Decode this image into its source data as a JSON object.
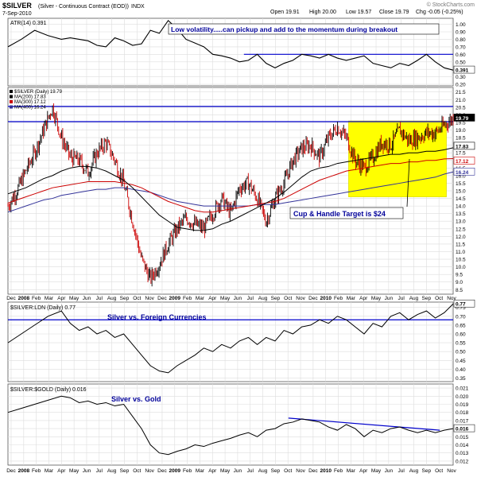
{
  "header": {
    "symbol": "$SILVER",
    "description": "(Silver - Continuous Contract (EOD))",
    "exchange": "INDX",
    "date": "7-Sep-2010",
    "open": "Open 19.91",
    "high": "High 20.00",
    "low": "Low 19.57",
    "close": "Close 19.79",
    "change": "Chg -0.05 (-0.25%)",
    "watermark": "© StockCharts.com"
  },
  "colors": {
    "price_up": "#000000",
    "price_down": "#cc0000",
    "ma200": "#000000",
    "ma300": "#cc0000",
    "ma400": "#333399",
    "highlight": "#ffff00",
    "annotation_text": "#000099",
    "hline": "#0000cc"
  },
  "chart_data": [
    {
      "type": "line",
      "panel": "atr",
      "legend": "ATR(14) 0.391",
      "annotation": "Low volatility.....can pickup and add to the momentum during breakout",
      "yticks": [
        "1.00",
        "0.90",
        "0.80",
        "0.70",
        "0.60",
        "0.50",
        "0.40",
        "0.30",
        "0.20"
      ],
      "ylim": [
        0.18,
        1.08
      ],
      "last_value_label": "0.391",
      "hline": 0.6,
      "x": [
        0,
        3,
        6,
        9,
        12,
        14,
        16,
        18,
        20,
        22,
        24,
        26,
        28,
        30,
        32,
        34,
        36,
        38,
        40,
        42,
        44,
        46,
        48,
        50,
        52,
        54,
        56,
        58,
        60,
        62,
        64,
        66,
        68,
        70,
        72,
        74,
        76,
        78,
        80,
        82,
        84,
        86,
        88,
        90,
        92,
        94,
        96,
        98,
        100
      ],
      "y": [
        0.7,
        0.8,
        0.92,
        0.85,
        0.8,
        0.82,
        0.8,
        0.78,
        0.72,
        0.7,
        0.82,
        0.78,
        0.72,
        0.74,
        0.92,
        0.88,
        1.05,
        0.94,
        0.8,
        0.75,
        0.7,
        0.6,
        0.58,
        0.55,
        0.5,
        0.52,
        0.6,
        0.48,
        0.42,
        0.48,
        0.52,
        0.6,
        0.58,
        0.55,
        0.6,
        0.55,
        0.52,
        0.55,
        0.58,
        0.48,
        0.45,
        0.42,
        0.48,
        0.45,
        0.52,
        0.6,
        0.5,
        0.42,
        0.39
      ]
    },
    {
      "type": "candlestick",
      "panel": "price",
      "legend": [
        "$SILVER (Daily) 19.79",
        "MA(200) 17.83",
        "MA(300) 17.12",
        "MA(400) 16.24"
      ],
      "yticks": [
        "21.5",
        "21.0",
        "20.5",
        "20.0",
        "19.5",
        "19.0",
        "18.5",
        "18.0",
        "17.5",
        "17.0",
        "16.5",
        "16.0",
        "15.5",
        "15.0",
        "14.5",
        "14.0",
        "13.5",
        "13.0",
        "12.5",
        "12.0",
        "11.5",
        "11.0",
        "10.5",
        "10.0",
        "9.5",
        "9.0",
        "8.5"
      ],
      "ylim": [
        8.2,
        21.8
      ],
      "last_value_labels": [
        "19.79",
        "17.83",
        "17.12",
        "16.24"
      ],
      "hlines": [
        20.55,
        19.55
      ],
      "annotation": "Cup & Handle Target is $24",
      "highlight_box": {
        "x": [
          76.5,
          98.5
        ],
        "y": [
          14.6,
          19.6
        ]
      },
      "x": [
        0,
        2,
        4,
        6,
        8,
        10,
        12,
        14,
        16,
        18,
        20,
        22,
        24,
        26,
        28,
        30,
        32,
        34,
        36,
        38,
        40,
        42,
        44,
        46,
        48,
        50,
        52,
        54,
        56,
        58,
        60,
        62,
        64,
        66,
        68,
        70,
        72,
        74,
        76,
        78,
        80,
        82,
        84,
        86,
        88,
        90,
        92,
        94,
        96,
        98,
        100
      ],
      "close": [
        14.0,
        15.0,
        16.3,
        17.5,
        19.0,
        20.5,
        18.5,
        17.2,
        17.0,
        16.2,
        17.5,
        18.2,
        17.0,
        15.5,
        13.0,
        10.5,
        9.2,
        10.2,
        11.5,
        12.5,
        13.2,
        12.8,
        12.5,
        13.5,
        14.5,
        13.5,
        15.2,
        15.5,
        14.5,
        13.0,
        14.5,
        15.5,
        17.0,
        17.8,
        18.0,
        17.2,
        18.5,
        19.2,
        18.5,
        17.0,
        16.5,
        17.2,
        18.2,
        18.0,
        19.0,
        18.3,
        18.5,
        18.8,
        18.8,
        19.3,
        19.79
      ],
      "ma200": [
        14.8,
        15.0,
        15.2,
        15.5,
        15.8,
        16.0,
        16.3,
        16.5,
        16.6,
        16.6,
        16.5,
        16.3,
        16.0,
        15.7,
        15.2,
        14.6,
        14.0,
        13.4,
        13.0,
        12.6,
        12.5,
        12.4,
        12.4,
        12.5,
        12.8,
        13.0,
        13.3,
        13.6,
        13.9,
        14.2,
        14.5,
        14.9,
        15.4,
        15.9,
        16.3,
        16.5,
        16.6,
        16.8,
        16.9,
        17.0,
        17.1,
        17.2,
        17.3,
        17.4,
        17.4,
        17.5,
        17.5,
        17.6,
        17.6,
        17.7,
        17.83
      ],
      "ma300": [
        14.2,
        14.4,
        14.6,
        14.8,
        15.0,
        15.2,
        15.3,
        15.4,
        15.5,
        15.6,
        15.6,
        15.6,
        15.6,
        15.5,
        15.4,
        15.2,
        14.9,
        14.6,
        14.3,
        14.1,
        13.9,
        13.7,
        13.6,
        13.6,
        13.7,
        13.8,
        13.9,
        14.0,
        14.1,
        14.2,
        14.3,
        14.5,
        14.8,
        15.1,
        15.4,
        15.7,
        15.9,
        16.1,
        16.3,
        16.4,
        16.5,
        16.6,
        16.7,
        16.8,
        16.8,
        16.9,
        16.9,
        17.0,
        17.0,
        17.1,
        17.12
      ],
      "ma400": [
        13.6,
        13.8,
        14.0,
        14.2,
        14.4,
        14.5,
        14.7,
        14.8,
        14.9,
        15.0,
        15.1,
        15.1,
        15.2,
        15.2,
        15.1,
        15.0,
        14.9,
        14.7,
        14.5,
        14.3,
        14.2,
        14.1,
        14.0,
        14.0,
        14.0,
        14.0,
        14.0,
        14.0,
        14.1,
        14.1,
        14.1,
        14.2,
        14.3,
        14.4,
        14.5,
        14.6,
        14.7,
        14.8,
        14.9,
        15.0,
        15.1,
        15.2,
        15.3,
        15.4,
        15.5,
        15.6,
        15.7,
        15.8,
        15.9,
        16.1,
        16.24
      ]
    },
    {
      "type": "line",
      "panel": "silver_ldn",
      "legend": "$SILVER:LDN (Daily) 0.77",
      "annotation": "Silver vs. Foreign Currencies",
      "yticks": [
        "0.75",
        "0.70",
        "0.65",
        "0.60",
        "0.55",
        "0.50",
        "0.45",
        "0.40",
        "0.35"
      ],
      "ylim": [
        0.33,
        0.78
      ],
      "last_value_label": "0.77",
      "hline": 0.68,
      "x": [
        0,
        3,
        6,
        9,
        12,
        14,
        16,
        18,
        20,
        22,
        24,
        26,
        28,
        30,
        32,
        34,
        36,
        38,
        40,
        42,
        44,
        46,
        48,
        50,
        52,
        54,
        56,
        58,
        60,
        62,
        64,
        66,
        68,
        70,
        72,
        74,
        76,
        78,
        80,
        82,
        84,
        86,
        88,
        90,
        92,
        94,
        96,
        98,
        100
      ],
      "y": [
        0.55,
        0.6,
        0.65,
        0.7,
        0.73,
        0.66,
        0.62,
        0.64,
        0.6,
        0.62,
        0.58,
        0.6,
        0.54,
        0.48,
        0.42,
        0.39,
        0.38,
        0.42,
        0.45,
        0.48,
        0.52,
        0.5,
        0.54,
        0.52,
        0.56,
        0.58,
        0.54,
        0.58,
        0.56,
        0.62,
        0.6,
        0.64,
        0.65,
        0.68,
        0.66,
        0.7,
        0.68,
        0.64,
        0.6,
        0.66,
        0.64,
        0.7,
        0.72,
        0.68,
        0.71,
        0.73,
        0.69,
        0.72,
        0.77
      ]
    },
    {
      "type": "line",
      "panel": "silver_gold",
      "legend": "$SILVER:$GOLD (Daily) 0.016",
      "annotation": "Silver vs. Gold",
      "yticks": [
        "0.021",
        "0.020",
        "0.019",
        "0.018",
        "0.017",
        "0.016",
        "0.015",
        "0.014",
        "0.013",
        "0.012"
      ],
      "ylim": [
        0.0115,
        0.0215
      ],
      "last_value_label": "0.016",
      "trendline": {
        "x": [
          63,
          97
        ],
        "y": [
          0.0173,
          0.0158
        ]
      },
      "x": [
        0,
        3,
        6,
        9,
        12,
        14,
        16,
        18,
        20,
        22,
        24,
        26,
        28,
        30,
        32,
        34,
        36,
        38,
        40,
        42,
        44,
        46,
        48,
        50,
        52,
        54,
        56,
        58,
        60,
        62,
        64,
        66,
        68,
        70,
        72,
        74,
        76,
        78,
        80,
        82,
        84,
        86,
        88,
        90,
        92,
        94,
        96,
        98,
        100
      ],
      "y": [
        0.018,
        0.0185,
        0.019,
        0.0195,
        0.02,
        0.0198,
        0.0192,
        0.0194,
        0.019,
        0.0192,
        0.0188,
        0.019,
        0.0175,
        0.016,
        0.014,
        0.013,
        0.0128,
        0.0132,
        0.0135,
        0.014,
        0.0138,
        0.0142,
        0.0145,
        0.0148,
        0.0152,
        0.0155,
        0.015,
        0.0158,
        0.016,
        0.0166,
        0.0168,
        0.0172,
        0.017,
        0.0168,
        0.0162,
        0.0158,
        0.0165,
        0.016,
        0.015,
        0.0158,
        0.0155,
        0.016,
        0.0162,
        0.0158,
        0.0155,
        0.0158,
        0.0155,
        0.0158,
        0.016
      ]
    }
  ],
  "x_axis": {
    "labels": [
      "Dec",
      "2008",
      "Feb",
      "Mar",
      "Apr",
      "May",
      "Jun",
      "Jul",
      "Aug",
      "Sep",
      "Oct",
      "Nov",
      "Dec",
      "2009",
      "Feb",
      "Mar",
      "Apr",
      "May",
      "Jun",
      "Jul",
      "Aug",
      "Sep",
      "Oct",
      "Nov",
      "Dec",
      "2010",
      "Feb",
      "Mar",
      "Apr",
      "May",
      "Jun",
      "Jul",
      "Aug",
      "Sep",
      "Oct",
      "Nov"
    ]
  }
}
